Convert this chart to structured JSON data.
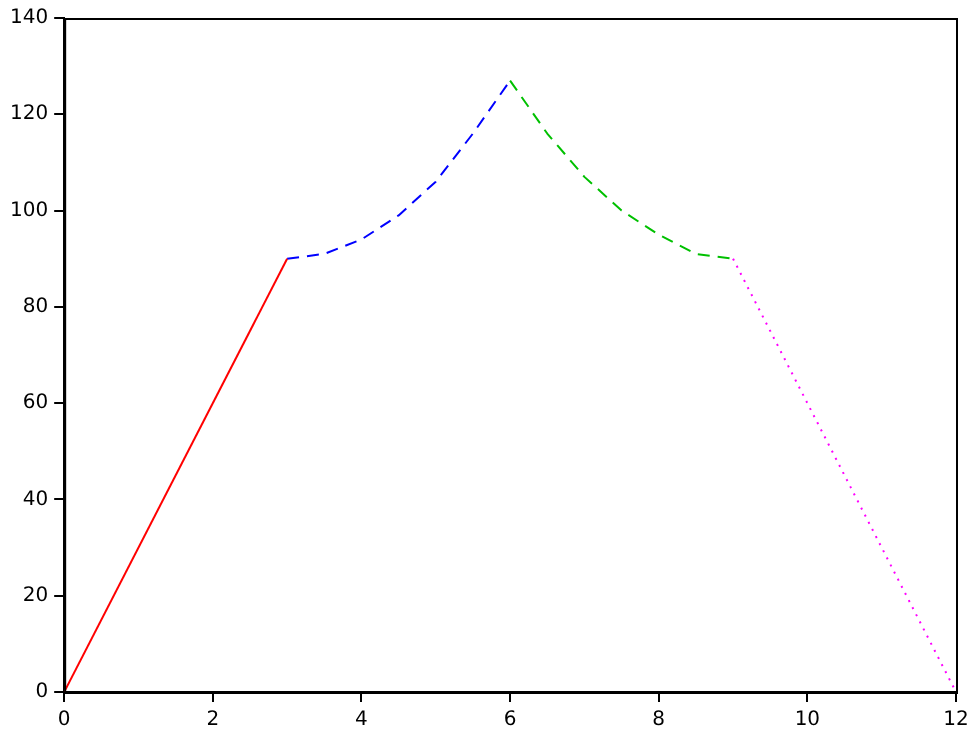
{
  "chart_data": {
    "type": "line",
    "xlim": [
      0,
      12
    ],
    "xticks": [
      0,
      2,
      4,
      6,
      8,
      10,
      12
    ],
    "ylim": [
      0,
      140
    ],
    "yticks": [
      0,
      20,
      40,
      60,
      80,
      100,
      120,
      140
    ],
    "grid": false,
    "legend": false,
    "marker": "none",
    "series": [
      {
        "color": "#ff0000",
        "line_style": "solid",
        "x": [
          0,
          3
        ],
        "values": [
          0,
          90
        ]
      },
      {
        "color": "#0000ff",
        "line_style": "dashed",
        "x": [
          3,
          3.5,
          4,
          4.5,
          5,
          5.5,
          6
        ],
        "values": [
          90,
          91,
          94,
          99,
          106,
          116,
          127
        ]
      },
      {
        "color": "#00c000",
        "line_style": "dashed",
        "x": [
          6,
          6.5,
          7,
          7.5,
          8,
          8.5,
          9
        ],
        "values": [
          127,
          116,
          107,
          100,
          95,
          91,
          90
        ]
      },
      {
        "color": "#ff00ff",
        "line_style": "dotted",
        "x": [
          9,
          12
        ],
        "values": [
          90,
          0
        ]
      }
    ]
  }
}
